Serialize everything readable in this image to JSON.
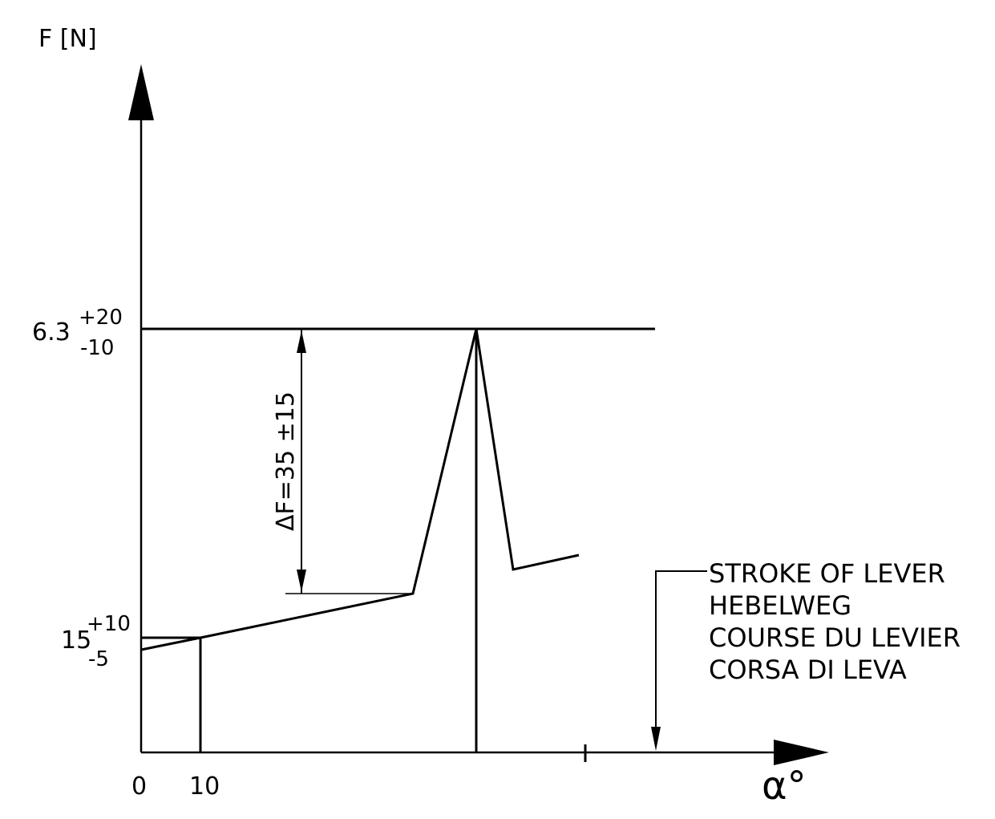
{
  "axes": {
    "y_label": "F [N]",
    "x_label": "α°"
  },
  "x_ticks": {
    "origin": "0",
    "ten": "10"
  },
  "y_ticks": {
    "upper": {
      "base": "6.3",
      "tol_plus": "+20",
      "tol_minus": "-10"
    },
    "lower": {
      "base": "15",
      "tol_plus": "+10",
      "tol_minus": "-5"
    }
  },
  "delta_annotation": "ΔF=35 ±15",
  "stroke_note": {
    "lines": [
      "STROKE OF LEVER",
      "HEBELWEG",
      "COURSE DU LEVIER",
      "CORSA DI LEVA"
    ]
  },
  "colors": {
    "ink": "#000000",
    "paper": "#ffffff"
  }
}
